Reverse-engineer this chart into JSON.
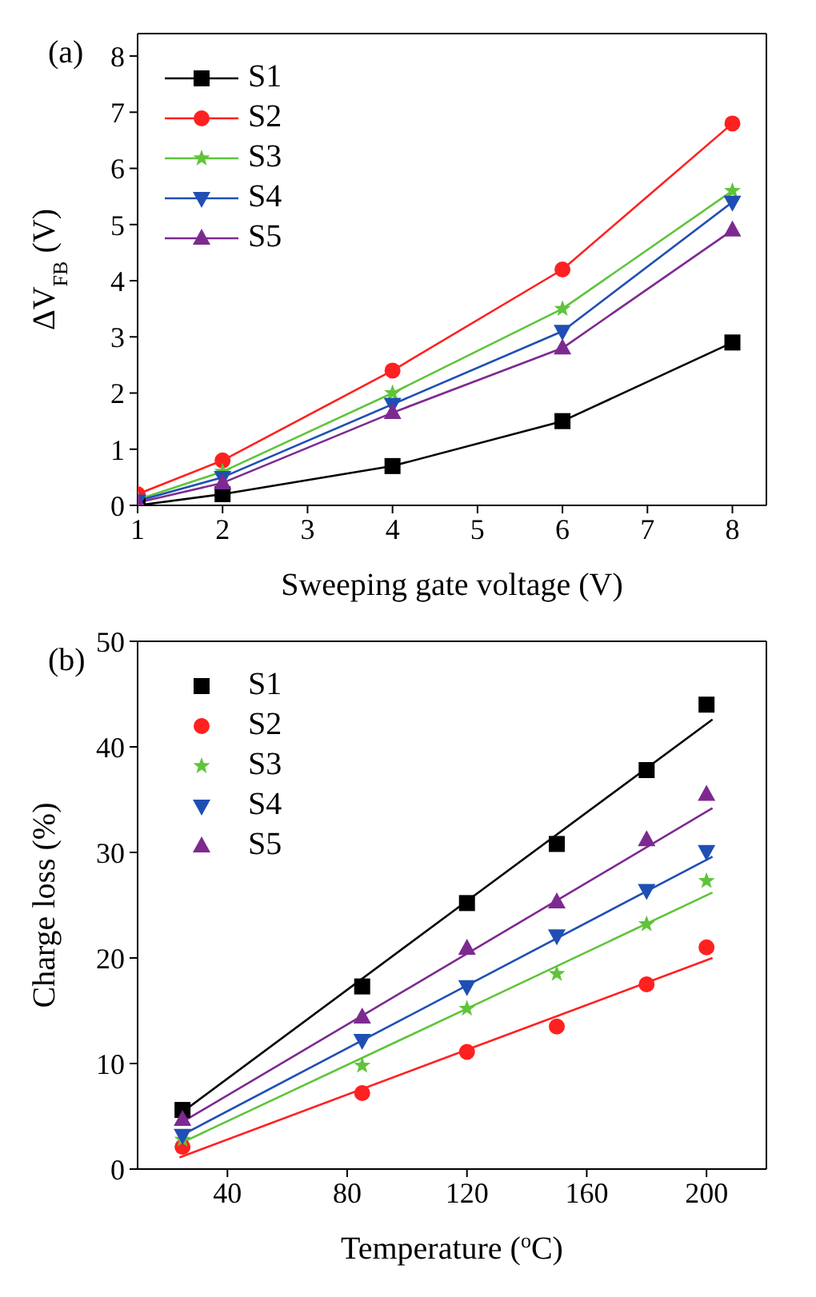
{
  "chart_data": [
    {
      "type": "line",
      "title": "(a)",
      "xlabel": "Sweeping gate voltage (V)",
      "ylabel": "ΔV$_{FB}$ (V)",
      "x": [
        1,
        2,
        4,
        6,
        8
      ],
      "xlim": [
        1,
        8.4
      ],
      "xticks": [
        1,
        2,
        3,
        4,
        5,
        6,
        7,
        8
      ],
      "ylim": [
        0,
        8.4
      ],
      "yticks": [
        0,
        1,
        2,
        3,
        4,
        5,
        6,
        7,
        8
      ],
      "legend": "top left",
      "line_style": "solid",
      "series": [
        {
          "name": "S1",
          "color": "#000000",
          "marker": "square",
          "values": [
            0,
            0.2,
            0.7,
            1.5,
            2.9
          ]
        },
        {
          "name": "S2",
          "color": "#ff2020",
          "marker": "circle",
          "values": [
            0.2,
            0.8,
            2.4,
            4.2,
            6.8
          ]
        },
        {
          "name": "S3",
          "color": "#5fc43a",
          "marker": "star",
          "values": [
            0.1,
            0.6,
            2.0,
            3.5,
            5.6
          ]
        },
        {
          "name": "S4",
          "color": "#1f4fb4",
          "marker": "triangle-down",
          "values": [
            0.08,
            0.5,
            1.8,
            3.1,
            5.4
          ]
        },
        {
          "name": "S5",
          "color": "#7d2a90",
          "marker": "triangle",
          "values": [
            0.05,
            0.4,
            1.65,
            2.8,
            4.9
          ]
        }
      ]
    },
    {
      "type": "scatter",
      "title": "(b)",
      "xlabel": "Temperature ($^{o}$C)",
      "ylabel": "Charge loss (%)",
      "xlim": [
        10,
        220
      ],
      "xticks": [
        40,
        80,
        120,
        160,
        200
      ],
      "ylim": [
        0,
        50
      ],
      "yticks": [
        0,
        10,
        20,
        30,
        40,
        50
      ],
      "legend": "top left",
      "series": [
        {
          "name": "S1",
          "color": "#000000",
          "marker": "square",
          "x": [
            25,
            85,
            120,
            150,
            180,
            200
          ],
          "values": [
            5.6,
            17.3,
            25.2,
            30.8,
            37.8,
            44
          ]
        },
        {
          "name": "S2",
          "color": "#ff2020",
          "marker": "circle",
          "x": [
            25,
            85,
            120,
            150,
            180,
            200
          ],
          "values": [
            2.1,
            7.2,
            11.1,
            13.5,
            17.5,
            21
          ]
        },
        {
          "name": "S3",
          "color": "#5fc43a",
          "marker": "star",
          "x": [
            25,
            85,
            120,
            150,
            180,
            200
          ],
          "values": [
            2.8,
            9.8,
            15.2,
            18.5,
            23.2,
            27.3
          ]
        },
        {
          "name": "S4",
          "color": "#1f4fb4",
          "marker": "triangle-down",
          "x": [
            25,
            85,
            120,
            150,
            180,
            200
          ],
          "values": [
            3.2,
            12.2,
            17.3,
            22.1,
            26.4,
            30.1
          ]
        },
        {
          "name": "S5",
          "color": "#7d2a90",
          "marker": "triangle",
          "x": [
            25,
            85,
            120,
            150,
            180,
            200
          ],
          "values": [
            4.7,
            14.4,
            20.9,
            25.3,
            31.2,
            35.5
          ]
        },
        {
          "type": "line",
          "color": "#000000",
          "marker": "none",
          "x": [
            24,
            120,
            202
          ],
          "values": [
            5.2,
            25.4,
            42.6
          ]
        },
        {
          "type": "line",
          "color": "#ff2020",
          "marker": "none",
          "x": [
            24,
            120,
            202
          ],
          "values": [
            1.1,
            11.3,
            20.0
          ]
        },
        {
          "type": "line",
          "color": "#5fc43a",
          "marker": "none",
          "x": [
            24,
            120,
            202
          ],
          "values": [
            2.4,
            15.2,
            26.2
          ]
        },
        {
          "type": "line",
          "color": "#1f4fb4",
          "marker": "none",
          "x": [
            24,
            120,
            202
          ],
          "values": [
            3.1,
            17.4,
            29.6
          ]
        },
        {
          "type": "line",
          "color": "#7d2a90",
          "marker": "none",
          "x": [
            24,
            120,
            202
          ],
          "values": [
            4.3,
            20.4,
            34.2
          ]
        }
      ]
    }
  ]
}
